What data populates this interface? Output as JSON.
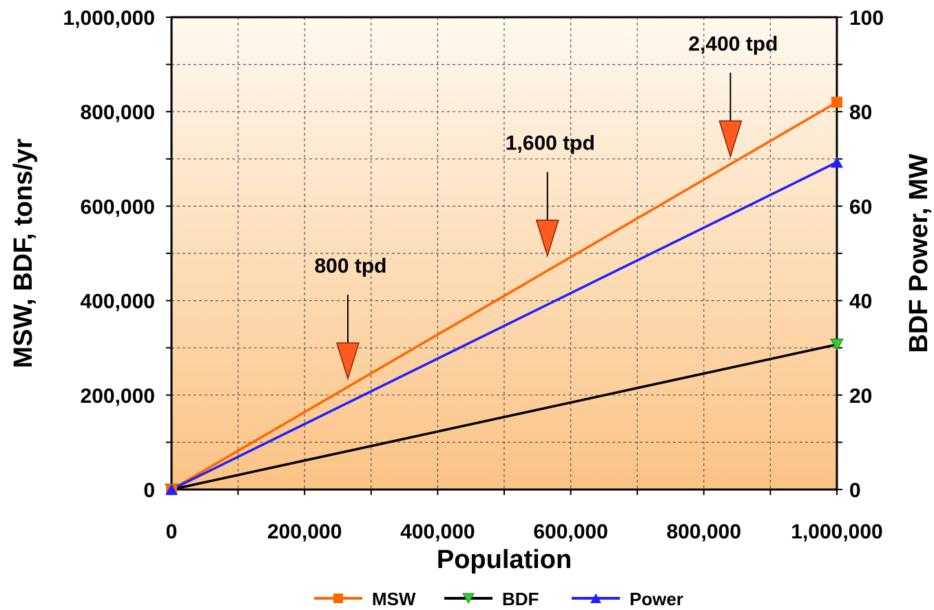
{
  "chart_data": {
    "type": "line",
    "x": [
      0,
      1000000
    ],
    "xlabel": "Population",
    "ylabel": "MSW, BDF, tons/yr",
    "y2label": "BDF Power, MW",
    "xlim": [
      0,
      1000000
    ],
    "ylim": [
      0,
      1000000
    ],
    "y2lim": [
      0,
      100
    ],
    "x_ticks": [
      "0",
      "200,000",
      "400,000",
      "600,000",
      "800,000",
      "1,000,000"
    ],
    "y_ticks": [
      "0",
      "200,000",
      "400,000",
      "600,000",
      "800,000",
      "1,000,000"
    ],
    "y2_ticks": [
      "0",
      "20",
      "40",
      "60",
      "80",
      "100"
    ],
    "grid": true,
    "legend_position": "bottom",
    "series": [
      {
        "name": "MSW",
        "axis": "left",
        "values": [
          0,
          820000
        ],
        "color": "#ff6600",
        "marker": "square"
      },
      {
        "name": "BDF",
        "axis": "left",
        "values": [
          0,
          307000
        ],
        "color": "#000000",
        "marker_color": "#33cc33",
        "marker": "triangle-down"
      },
      {
        "name": "Power",
        "axis": "right",
        "values": [
          0,
          69.3
        ],
        "color": "#1f1fff",
        "marker": "triangle-up"
      }
    ],
    "annotations": [
      {
        "text": "800 tpd",
        "x": 265000,
        "y": 220000
      },
      {
        "text": "1,600 tpd",
        "x": 565000,
        "y": 480000
      },
      {
        "text": "2,400 tpd",
        "x": 840000,
        "y": 690000
      }
    ],
    "arrow_color": "#ff5a1f"
  }
}
